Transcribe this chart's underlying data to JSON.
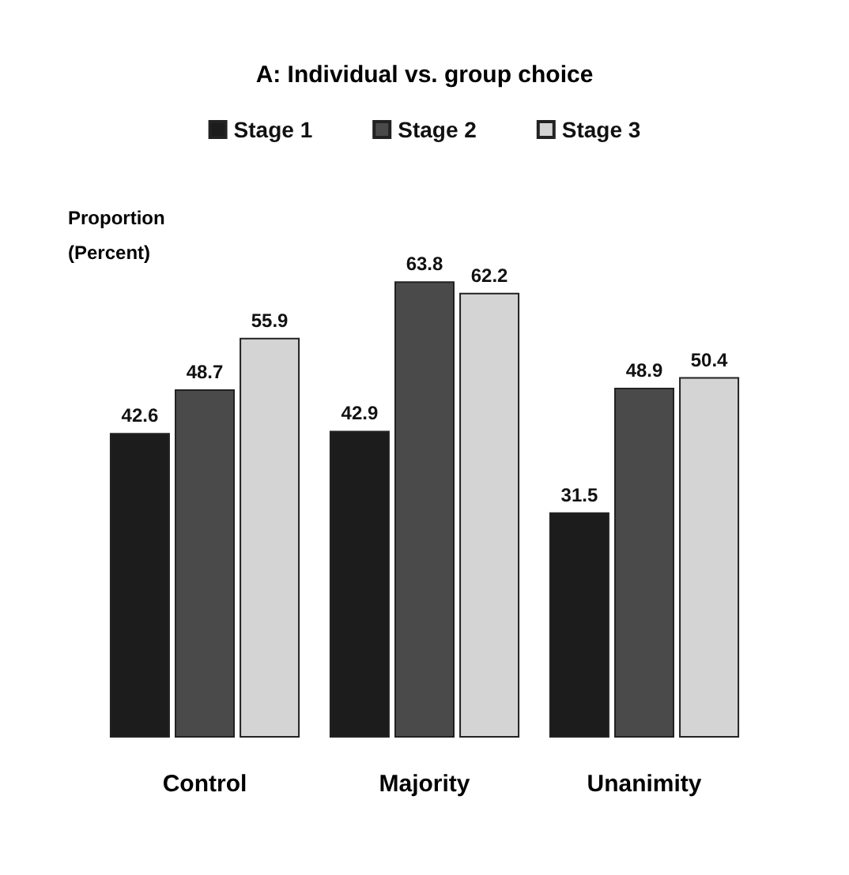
{
  "chart_data": {
    "type": "bar",
    "title": "A: Individual vs. group choice",
    "ylabel": "Proportion (Percent)",
    "categories": [
      "Control",
      "Majority",
      "Unanimity"
    ],
    "series": [
      {
        "name": "Stage 1",
        "color": "#1c1c1c",
        "values": [
          42.6,
          42.9,
          31.5
        ]
      },
      {
        "name": "Stage 2",
        "color": "#4a4a4a",
        "values": [
          48.7,
          63.8,
          48.9
        ]
      },
      {
        "name": "Stage 3",
        "color": "#d4d4d4",
        "values": [
          55.9,
          62.2,
          50.4
        ]
      }
    ],
    "data_labels": true,
    "legend": "top"
  }
}
